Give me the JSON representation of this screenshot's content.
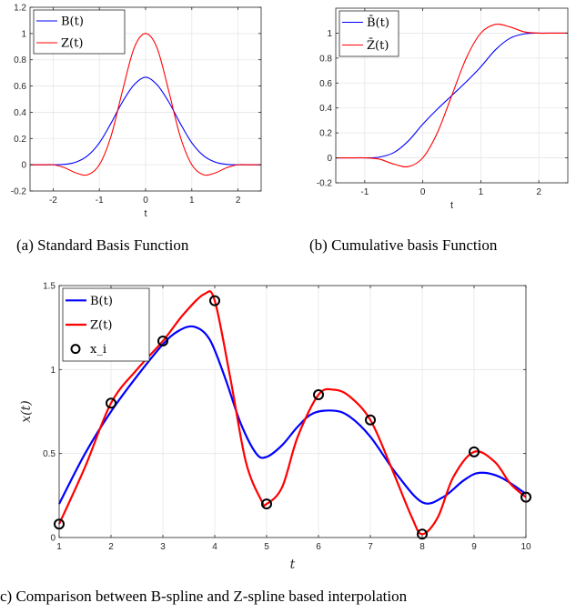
{
  "colors": {
    "blue": "#0000ff",
    "red": "#ff0000",
    "axis": "#262626",
    "grid": "#e6e6e6"
  },
  "captions": {
    "a": "(a) Standard Basis Function",
    "b": "(b) Cumulative basis Function",
    "c": "c) Comparison between B-spline and Z-spline based interpolation"
  },
  "chart_data": [
    {
      "id": "a",
      "type": "line",
      "xlabel": "t",
      "ylabel": "",
      "xlim": [
        -2.5,
        2.5
      ],
      "ylim": [
        -0.2,
        1.2
      ],
      "xticks": [
        -2,
        -1,
        0,
        1,
        2
      ],
      "yticks": [
        -0.2,
        0,
        0.2,
        0.4,
        0.6,
        0.8,
        1,
        1.2
      ],
      "grid": true,
      "legend_position": "top-left",
      "series": [
        {
          "name": "B(t)",
          "color": "#0000ff",
          "x": [
            -2.5,
            -2.25,
            -2,
            -1.75,
            -1.5,
            -1.25,
            -1,
            -0.75,
            -0.5,
            -0.25,
            0,
            0.25,
            0.5,
            0.75,
            1,
            1.25,
            1.5,
            1.75,
            2,
            2.25,
            2.5
          ],
          "y": [
            0,
            0,
            0,
            0.003,
            0.021,
            0.07,
            0.167,
            0.315,
            0.479,
            0.609,
            0.667,
            0.609,
            0.479,
            0.315,
            0.167,
            0.07,
            0.021,
            0.003,
            0,
            0,
            0
          ]
        },
        {
          "name": "Z(t)",
          "color": "#ff0000",
          "x": [
            -2.5,
            -2.25,
            -2,
            -1.75,
            -1.5,
            -1.25,
            -1,
            -0.75,
            -0.5,
            -0.25,
            0,
            0.25,
            0.5,
            0.75,
            1,
            1.25,
            1.5,
            1.75,
            2,
            2.25,
            2.5
          ],
          "y": [
            0,
            0,
            0,
            -0.023,
            -0.063,
            -0.076,
            0,
            0.215,
            0.563,
            0.888,
            1,
            0.888,
            0.563,
            0.215,
            0,
            -0.076,
            -0.063,
            -0.023,
            0,
            0,
            0
          ]
        }
      ]
    },
    {
      "id": "b",
      "type": "line",
      "xlabel": "t",
      "ylabel": "",
      "xlim": [
        -1.5,
        2.5
      ],
      "ylim": [
        -0.2,
        1.2
      ],
      "xticks": [
        -1,
        0,
        1,
        2
      ],
      "yticks": [
        -0.2,
        0,
        0.2,
        0.4,
        0.6,
        0.8,
        1
      ],
      "grid": true,
      "legend_position": "top-left",
      "series": [
        {
          "name": "B̄(t)",
          "color": "#0000ff",
          "x": [
            -1.5,
            -1.25,
            -1,
            -0.75,
            -0.5,
            -0.25,
            0,
            0.25,
            0.5,
            0.75,
            1,
            1.25,
            1.5,
            1.75,
            2,
            2.25,
            2.5
          ],
          "y": [
            0,
            0,
            0,
            0.006,
            0.042,
            0.135,
            0.27,
            0.39,
            0.5,
            0.61,
            0.73,
            0.865,
            0.958,
            0.994,
            1,
            1,
            1
          ]
        },
        {
          "name": "Z̄(t)",
          "color": "#ff0000",
          "x": [
            -1.5,
            -1.25,
            -1,
            -0.75,
            -0.5,
            -0.25,
            0,
            0.25,
            0.5,
            0.75,
            1,
            1.25,
            1.5,
            1.75,
            2,
            2.25,
            2.5
          ],
          "y": [
            0,
            0,
            0,
            -0.01,
            -0.05,
            -0.07,
            0,
            0.2,
            0.5,
            0.8,
            1.0,
            1.07,
            1.05,
            1.01,
            1,
            1,
            1
          ]
        }
      ]
    },
    {
      "id": "c",
      "type": "line",
      "xlabel": "t",
      "ylabel": "x(t)",
      "xlim": [
        1,
        10
      ],
      "ylim": [
        0,
        1.5
      ],
      "xticks": [
        1,
        2,
        3,
        4,
        5,
        6,
        7,
        8,
        9,
        10
      ],
      "yticks": [
        0,
        0.5,
        1,
        1.5
      ],
      "grid": true,
      "legend_position": "top-left",
      "series": [
        {
          "name": "B(t)",
          "color": "#0000ff",
          "x": [
            1,
            1.5,
            2,
            2.5,
            3,
            3.3,
            3.6,
            3.9,
            4.2,
            4.5,
            4.8,
            5,
            5.3,
            5.6,
            5.9,
            6.3,
            6.6,
            7,
            7.5,
            8,
            8.4,
            8.8,
            9.1,
            9.5,
            10
          ],
          "y": [
            0.2,
            0.5,
            0.75,
            0.96,
            1.15,
            1.23,
            1.255,
            1.18,
            0.95,
            0.68,
            0.5,
            0.48,
            0.55,
            0.66,
            0.74,
            0.755,
            0.72,
            0.6,
            0.38,
            0.21,
            0.24,
            0.34,
            0.385,
            0.36,
            0.26
          ]
        },
        {
          "name": "Z(t)",
          "color": "#ff0000",
          "x": [
            1,
            1.5,
            2,
            2.5,
            3,
            3.4,
            3.8,
            4,
            4.3,
            4.6,
            4.9,
            5,
            5.3,
            5.6,
            6,
            6.3,
            6.6,
            7,
            7.4,
            7.8,
            8,
            8.3,
            8.6,
            9,
            9.4,
            9.7,
            10
          ],
          "y": [
            0.08,
            0.42,
            0.8,
            1.0,
            1.17,
            1.33,
            1.45,
            1.41,
            0.95,
            0.45,
            0.22,
            0.2,
            0.3,
            0.6,
            0.85,
            0.88,
            0.84,
            0.7,
            0.42,
            0.12,
            0.02,
            0.12,
            0.36,
            0.51,
            0.45,
            0.32,
            0.24
          ]
        },
        {
          "name": "x_i",
          "color": "#000000",
          "marker": "circle",
          "x": [
            1,
            2,
            3,
            4,
            5,
            6,
            7,
            8,
            9,
            10
          ],
          "y": [
            0.08,
            0.8,
            1.17,
            1.41,
            0.2,
            0.85,
            0.7,
            0.02,
            0.51,
            0.24
          ]
        }
      ]
    }
  ]
}
